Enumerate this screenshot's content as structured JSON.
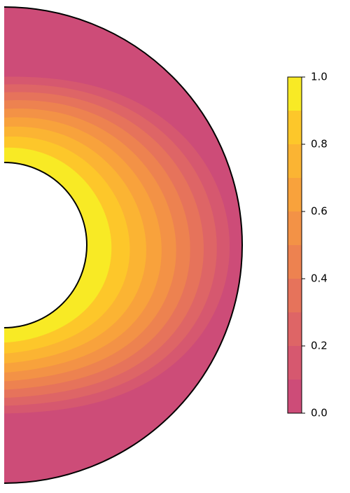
{
  "chart_data": {
    "type": "contour",
    "levels": [
      0,
      0.1,
      0.2,
      0.3,
      0.4,
      0.5,
      0.6,
      0.7,
      0.8,
      0.9,
      1
    ],
    "colors": [
      "#cd4c78",
      "#d6586f",
      "#de6566",
      "#e6735b",
      "#ed8250",
      "#f39246",
      "#f8a23c",
      "#fbb433",
      "#fdc72a",
      "#f8ea25"
    ],
    "clim": [
      0,
      1
    ],
    "cticks": [
      {
        "value": 0,
        "label": "0.0"
      },
      {
        "value": 0.2,
        "label": "0.2"
      },
      {
        "value": 0.4,
        "label": "0.4"
      },
      {
        "value": 0.6,
        "label": "0.6"
      },
      {
        "value": 0.8,
        "label": "0.8"
      },
      {
        "value": 1,
        "label": "1.0"
      }
    ]
  }
}
